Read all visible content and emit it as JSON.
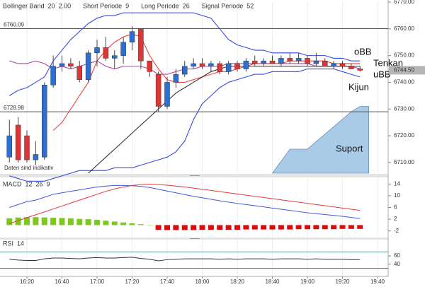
{
  "chart_data": [
    {
      "type": "candlestick",
      "indicators": [
        {
          "name": "Bollinger Band",
          "params": [
            "20",
            "2.00"
          ]
        },
        {
          "name": "Short Periode",
          "params": [
            "9"
          ]
        },
        {
          "name": "Long Periode",
          "params": [
            "26"
          ]
        },
        {
          "name": "Signal Periode",
          "params": [
            "52"
          ]
        }
      ],
      "note": "Daten sind indikativ",
      "x": [
        "16:10",
        "16:15",
        "16:20",
        "16:25",
        "16:30",
        "16:35",
        "16:40",
        "16:45",
        "16:50",
        "16:55",
        "17:00",
        "17:05",
        "17:10",
        "17:15",
        "17:20",
        "17:25",
        "17:30",
        "17:35",
        "17:40",
        "17:45",
        "17:50",
        "17:55",
        "18:00",
        "18:05",
        "18:10",
        "18:15",
        "18:20",
        "18:25",
        "18:30",
        "18:35",
        "18:40",
        "18:45",
        "18:50",
        "18:55",
        "19:00",
        "19:05",
        "19:10",
        "19:15",
        "19:20",
        "19:25",
        "19:30"
      ],
      "open": [
        6712,
        6724,
        6720,
        6711,
        6712,
        6739,
        6746,
        6747,
        6746,
        6741,
        6751,
        6753,
        6749,
        6750,
        6755,
        6760,
        6748,
        6743,
        6731,
        6740,
        6743,
        6746,
        6747,
        6746,
        6747,
        6744,
        6747,
        6745,
        6748,
        6747,
        6748,
        6747,
        6749,
        6748,
        6749,
        6747,
        6748,
        6746,
        6747,
        6746,
        6745
      ],
      "high": [
        6726,
        6727,
        6722,
        6718,
        6740,
        6750,
        6750,
        6749,
        6748,
        6752,
        6756,
        6757,
        6752,
        6757,
        6761,
        6760,
        6748,
        6744,
        6742,
        6745,
        6748,
        6749,
        6749,
        6748,
        6748,
        6748,
        6748,
        6749,
        6750,
        6749,
        6750,
        6750,
        6751,
        6751,
        6750,
        6751,
        6749,
        6748,
        6748,
        6747,
        6746
      ],
      "low": [
        6710,
        6710,
        6710,
        6709,
        6711,
        6738,
        6744,
        6745,
        6740,
        6740,
        6746,
        6748,
        6745,
        6747,
        6752,
        6745,
        6742,
        6729,
        6730,
        6738,
        6742,
        6745,
        6745,
        6744,
        6743,
        6743,
        6744,
        6744,
        6746,
        6746,
        6747,
        6746,
        6747,
        6747,
        6746,
        6746,
        6746,
        6745,
        6745,
        6745,
        6744
      ],
      "close": [
        6720,
        6711,
        6711,
        6713,
        6739,
        6746,
        6747,
        6746,
        6741,
        6751,
        6753,
        6749,
        6750,
        6755,
        6759,
        6748,
        6744,
        6731,
        6740,
        6743,
        6746,
        6747,
        6746,
        6747,
        6744,
        6747,
        6745,
        6748,
        6747,
        6748,
        6747,
        6749,
        6748,
        6749,
        6747,
        6748,
        6746,
        6747,
        6746,
        6745,
        6744.5
      ],
      "up_color": "#2a6fd4",
      "down_color": "#e03535",
      "overlays": [
        {
          "name": "oBB",
          "color": "#3a48e0",
          "values": [
            6735,
            6737,
            6738,
            6740,
            6742,
            6748,
            6752,
            6756,
            6759,
            6762,
            6764,
            6765,
            6765,
            6766,
            6766,
            6766,
            6766,
            6766,
            6766,
            6766,
            6766,
            6766,
            6765,
            6764,
            6760,
            6756,
            6754,
            6753,
            6752,
            6752,
            6751,
            6751,
            6751,
            6751,
            6750,
            6750,
            6750,
            6749,
            6749,
            6748,
            6748
          ]
        },
        {
          "color": "#a848a8",
          "values": [
            6748,
            6747,
            6747,
            6748,
            6747,
            6745,
            6746,
            6745,
            6746,
            6747,
            6748,
            6746,
            6745,
            6746,
            6746,
            6746,
            6745,
            6743,
            6743,
            6744,
            6745,
            6745,
            6746,
            6746,
            6746,
            6747,
            6747,
            6747,
            6747,
            6747,
            6747,
            6747,
            6747,
            6747,
            6747,
            6746,
            6746,
            6746,
            6746,
            6746,
            6745
          ]
        },
        {
          "name": "uBB",
          "color": "#3a48e0",
          "values": [
            6705,
            6704,
            6703,
            6703,
            6703,
            6704,
            6705,
            6706,
            6707,
            6707,
            6707,
            6707,
            6708,
            6708,
            6708,
            6709,
            6710,
            6711,
            6712,
            6714,
            6718,
            6726,
            6732,
            6735,
            6738,
            6740,
            6741,
            6742,
            6743,
            6743,
            6744,
            6744,
            6744,
            6744,
            6745,
            6745,
            6745,
            6745,
            6744,
            6743,
            6742
          ]
        },
        {
          "name": "Tenkan",
          "color": "#f04040",
          "values": [
            null,
            null,
            null,
            null,
            null,
            6722,
            6725,
            6730,
            6735,
            6740,
            6748,
            6752,
            6755,
            6757,
            6758,
            6757,
            6750,
            6745,
            6741,
            6740,
            6740,
            6741,
            6742,
            6743,
            6744,
            6744,
            6745,
            6746,
            6747,
            6747,
            6747,
            6747,
            6748,
            6748,
            6748,
            6748,
            6748,
            6747,
            6747,
            6747,
            6747
          ]
        },
        {
          "name": "Kijun",
          "color": "#333333",
          "values": [
            null,
            null,
            null,
            null,
            null,
            null,
            null,
            null,
            null,
            6706,
            6709,
            6712,
            6715,
            6718,
            6721,
            6724,
            6727,
            6730,
            6733,
            6736,
            6738,
            6740,
            6742,
            6744,
            6745,
            6746,
            6746,
            6746,
            6746,
            6746,
            6746,
            6746,
            6746,
            6746,
            6746,
            6746,
            6746,
            6746,
            6746,
            6746,
            6746
          ]
        }
      ],
      "area": {
        "name": "Suport",
        "color": "#a9cbe8",
        "x": [
          "18:40",
          "18:50",
          "19:00",
          "19:25",
          "19:30",
          "19:35"
        ],
        "values": [
          6706,
          6715,
          6715,
          6729,
          6731,
          6731
        ]
      },
      "levels": [
        6760.09,
        6728.98
      ],
      "last_price": {
        "value": 6744.5,
        "label": "6744.50"
      },
      "ylim": [
        6706,
        6770
      ],
      "yticks": [
        {
          "value": 6770,
          "label": "6770.00"
        },
        {
          "value": 6760,
          "label": "6760.00"
        },
        {
          "value": 6750,
          "label": "6750.00"
        },
        {
          "value": 6740,
          "label": "6740.00"
        },
        {
          "value": 6730,
          "label": "6730.00"
        },
        {
          "value": 6720,
          "label": "6720.00"
        },
        {
          "value": 6710,
          "label": "6710.00"
        }
      ]
    },
    {
      "type": "combo",
      "indicators": [
        {
          "name": "MACD",
          "params": [
            "12",
            "26",
            "9"
          ]
        }
      ],
      "histogram": {
        "up_color": "#7cc81e",
        "down_color": "#dd0a0a",
        "values": [
          2.3,
          2.6,
          2.7,
          2.7,
          2.6,
          2.5,
          2.4,
          2.3,
          2.1,
          2.0,
          1.8,
          1.5,
          1.2,
          0.9,
          0.6,
          0.3,
          0.1,
          -1.6,
          -1.7,
          -1.7,
          -1.7,
          -1.7,
          -1.6,
          -1.6,
          -1.6,
          -1.6,
          -1.6,
          -1.5,
          -1.5,
          -1.5,
          -1.5,
          -1.5,
          -1.5,
          -1.4,
          -1.4,
          -1.4,
          -1.4,
          -1.4,
          -1.3,
          -1.3,
          -1.3
        ]
      },
      "series": [
        {
          "color": "#4455dd",
          "values": [
            6,
            7,
            8,
            8.5,
            9.5,
            10.5,
            11,
            11.5,
            12,
            12.5,
            13,
            13.3,
            13.5,
            13.5,
            13.4,
            13.2,
            12.8,
            12.2,
            11.6,
            11,
            10.4,
            9.8,
            9.3,
            8.8,
            8.3,
            7.8,
            7.4,
            7,
            6.6,
            6.2,
            5.8,
            5.4,
            5,
            4.6,
            4.2,
            3.9,
            3.6,
            3.3,
            3,
            2.6,
            2.2
          ]
        },
        {
          "color": "#e03a3a",
          "values": [
            0.5,
            1.5,
            2.5,
            3.5,
            4.5,
            5.5,
            6.5,
            7.5,
            8.5,
            9.5,
            10.5,
            11.5,
            12.3,
            13,
            13.5,
            13.8,
            13.9,
            13.8,
            13.6,
            13.3,
            13,
            12.6,
            12.2,
            11.8,
            11.4,
            11,
            10.6,
            10.2,
            9.8,
            9.4,
            9,
            8.6,
            8.2,
            7.8,
            7.4,
            7,
            6.6,
            6.2,
            5.8,
            5.4,
            5
          ]
        }
      ],
      "ylim": [
        -4,
        16
      ],
      "yticks": [
        14,
        10,
        6,
        2,
        -2
      ]
    },
    {
      "type": "line",
      "indicators": [
        {
          "name": "RSI",
          "params": [
            "14"
          ]
        }
      ],
      "series": [
        {
          "color": "#333333",
          "values": [
            52,
            50,
            49,
            49,
            53,
            55,
            55,
            54,
            53,
            55,
            56,
            55,
            55,
            56,
            57,
            54,
            52,
            48,
            51,
            52,
            53,
            53,
            53,
            53,
            52,
            53,
            52,
            53,
            53,
            53,
            52,
            53,
            53,
            53,
            52,
            53,
            52,
            52,
            52,
            51,
            51
          ]
        }
      ],
      "levels": [
        {
          "value": 70,
          "color": "#5a9a9a"
        },
        {
          "value": 30,
          "color": "#e03a3a"
        }
      ],
      "ylim": [
        10,
        100
      ],
      "yticks": [
        60,
        40
      ],
      "xticks": [
        "16:20",
        "16:40",
        "17:00",
        "17:20",
        "17:40",
        "18:00",
        "18:20",
        "18:40",
        "19:00",
        "19:20",
        "19:40"
      ]
    }
  ]
}
